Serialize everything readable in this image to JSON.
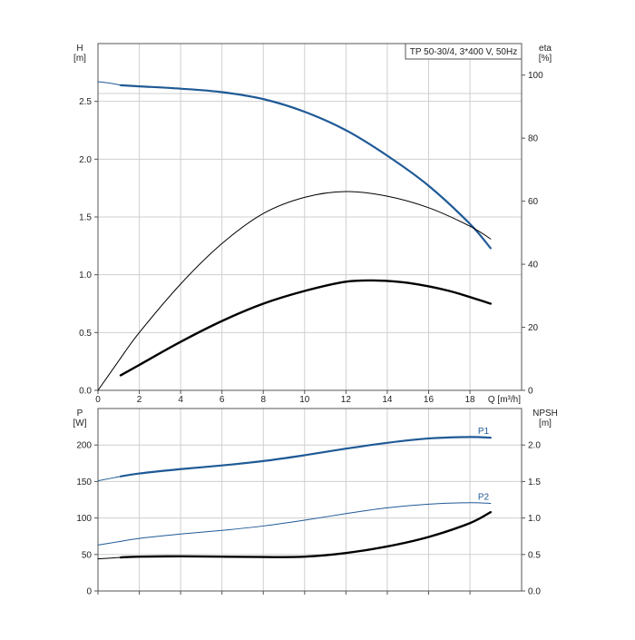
{
  "colors": {
    "grid": "#cfcfcf",
    "frame": "#555555",
    "blue": "#1f5a96",
    "black": "#000000"
  },
  "chart_data": [
    {
      "type": "line",
      "title": "TP 50-30/4, 3*400 V, 50Hz",
      "xlabel": "Q [m³/h]",
      "ylabel_left": [
        "H",
        "[m]"
      ],
      "ylabel_right": [
        "eta",
        "[%]"
      ],
      "xlim": [
        0,
        20.5
      ],
      "ylim_left": [
        0,
        3.0
      ],
      "ylim_right": [
        0,
        110
      ],
      "xticks": [
        0,
        2,
        4,
        6,
        8,
        10,
        12,
        14,
        16,
        18
      ],
      "xtick_labels": [
        "0",
        "2",
        "4",
        "6",
        "8",
        "10",
        "12",
        "14",
        "16",
        "18"
      ],
      "yticks_left": [
        0,
        0.5,
        1.0,
        1.5,
        2.0,
        2.5
      ],
      "ytick_labels_left": [
        "0.0",
        "0.5",
        "1.0",
        "1.5",
        "2.0",
        "2.5"
      ],
      "yticks_right": [
        0,
        20,
        40,
        60,
        80,
        100
      ],
      "ytick_labels_right": [
        "0",
        "20",
        "40",
        "60",
        "80",
        "100"
      ],
      "grid": true,
      "series": [
        {
          "key": "H-ext",
          "axis": "left",
          "style": "thin-blue",
          "x": [
            0,
            0.5,
            1.1
          ],
          "y": [
            2.67,
            2.66,
            2.64
          ]
        },
        {
          "key": "H",
          "axis": "left",
          "style": "thick-blue",
          "x": [
            1.1,
            2,
            4,
            6,
            8,
            10,
            12,
            14,
            16,
            18,
            19
          ],
          "y": [
            2.64,
            2.63,
            2.61,
            2.58,
            2.52,
            2.41,
            2.25,
            2.03,
            1.77,
            1.44,
            1.23
          ]
        },
        {
          "key": "eta-ext",
          "axis": "left",
          "style": "thin-black",
          "x": [
            0,
            1.1
          ],
          "y": [
            0.0,
            0.28
          ]
        },
        {
          "key": "eta",
          "axis": "left",
          "style": "thin-black",
          "x": [
            1.1,
            2,
            4,
            6,
            8,
            10,
            12,
            14,
            16,
            18,
            19
          ],
          "y": [
            0.28,
            0.5,
            0.92,
            1.27,
            1.53,
            1.67,
            1.72,
            1.68,
            1.58,
            1.42,
            1.31
          ]
        },
        {
          "key": "Pump-curve-3",
          "axis": "left",
          "style": "thick-black",
          "x": [
            1.1,
            2,
            4,
            6,
            8,
            10,
            12,
            13.5,
            15,
            17,
            19
          ],
          "y": [
            0.13,
            0.22,
            0.42,
            0.6,
            0.75,
            0.86,
            0.94,
            0.95,
            0.93,
            0.86,
            0.75
          ]
        }
      ]
    },
    {
      "type": "line",
      "xlabel": "",
      "ylabel_left": [
        "P",
        "[W]"
      ],
      "ylabel_right": [
        "NPSH",
        "[m]"
      ],
      "xlim": [
        0,
        20.5
      ],
      "ylim_left": [
        0,
        250
      ],
      "ylim_right": [
        0,
        2.5
      ],
      "xticks": [
        0,
        2,
        4,
        6,
        8,
        10,
        12,
        14,
        16,
        18
      ],
      "yticks_left": [
        0,
        50,
        100,
        150,
        200
      ],
      "ytick_labels_left": [
        "0",
        "50",
        "100",
        "150",
        "200"
      ],
      "yticks_right": [
        0,
        0.5,
        1.0,
        1.5,
        2.0
      ],
      "ytick_labels_right": [
        "0.0",
        "0.5",
        "1.0",
        "1.5",
        "2.0"
      ],
      "grid": true,
      "series": [
        {
          "key": "P1-ext",
          "axis": "left",
          "style": "thin-blue",
          "x": [
            0,
            1.1
          ],
          "y": [
            151,
            157
          ]
        },
        {
          "key": "P1",
          "name": "P1",
          "axis": "left",
          "style": "thick-blue",
          "x": [
            1.1,
            2,
            4,
            6,
            8,
            10,
            12,
            14,
            16,
            18,
            19
          ],
          "y": [
            157,
            161,
            167,
            172,
            178,
            186,
            195,
            203,
            209,
            211,
            210
          ]
        },
        {
          "key": "P2-ext",
          "axis": "left",
          "style": "thin-blue",
          "x": [
            0,
            1.1
          ],
          "y": [
            63,
            68
          ]
        },
        {
          "key": "P2",
          "name": "P2",
          "axis": "left",
          "style": "thin-blue",
          "x": [
            1.1,
            2,
            4,
            6,
            8,
            10,
            12,
            14,
            16,
            18,
            19
          ],
          "y": [
            68,
            72,
            78,
            83,
            89,
            97,
            106,
            114,
            119,
            121,
            120
          ]
        },
        {
          "key": "NPSH-ext",
          "axis": "right",
          "style": "thin-black",
          "x": [
            0,
            1.1
          ],
          "y": [
            0.44,
            0.46
          ]
        },
        {
          "key": "NPSH",
          "axis": "right",
          "style": "thick-black",
          "x": [
            1.1,
            2,
            4,
            6,
            8,
            10,
            12,
            14,
            16,
            18,
            19
          ],
          "y": [
            0.46,
            0.47,
            0.475,
            0.47,
            0.465,
            0.47,
            0.52,
            0.61,
            0.74,
            0.93,
            1.08
          ]
        }
      ],
      "series_labels": [
        {
          "text": "P1",
          "series": "P1"
        },
        {
          "text": "P2",
          "series": "P2"
        }
      ]
    }
  ]
}
